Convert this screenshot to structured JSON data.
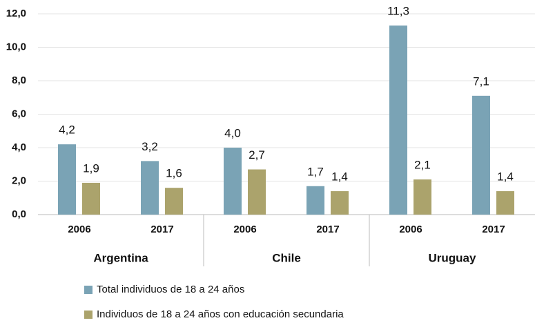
{
  "chart_data": {
    "type": "bar",
    "categories": [
      "2006",
      "2017",
      "2006",
      "2017",
      "2006",
      "2017"
    ],
    "groups": [
      "Argentina",
      "Chile",
      "Uruguay"
    ],
    "series": [
      {
        "name": "Total individuos de 18 a 24 años",
        "color": "#7aa3b5",
        "values": [
          4.2,
          3.2,
          4.0,
          1.7,
          11.3,
          7.1
        ],
        "value_labels": [
          "4,2",
          "3,2",
          "4,0",
          "1,7",
          "11,3",
          "7,1"
        ]
      },
      {
        "name": "Individuos de 18 a 24 años con educación secundaria",
        "color": "#aba36c",
        "values": [
          1.9,
          1.6,
          2.7,
          1.4,
          2.1,
          1.4
        ],
        "value_labels": [
          "1,9",
          "1,6",
          "2,7",
          "1,4",
          "2,1",
          "1,4"
        ]
      }
    ],
    "ylim": [
      0,
      12
    ],
    "yticks": [
      {
        "value": 0,
        "label": "0,0"
      },
      {
        "value": 2,
        "label": "2,0"
      },
      {
        "value": 4,
        "label": "4,0"
      },
      {
        "value": 6,
        "label": "6,0"
      },
      {
        "value": 8,
        "label": "8,0"
      },
      {
        "value": 10,
        "label": "10,0"
      },
      {
        "value": 12,
        "label": "12,0"
      }
    ],
    "grid": true
  }
}
